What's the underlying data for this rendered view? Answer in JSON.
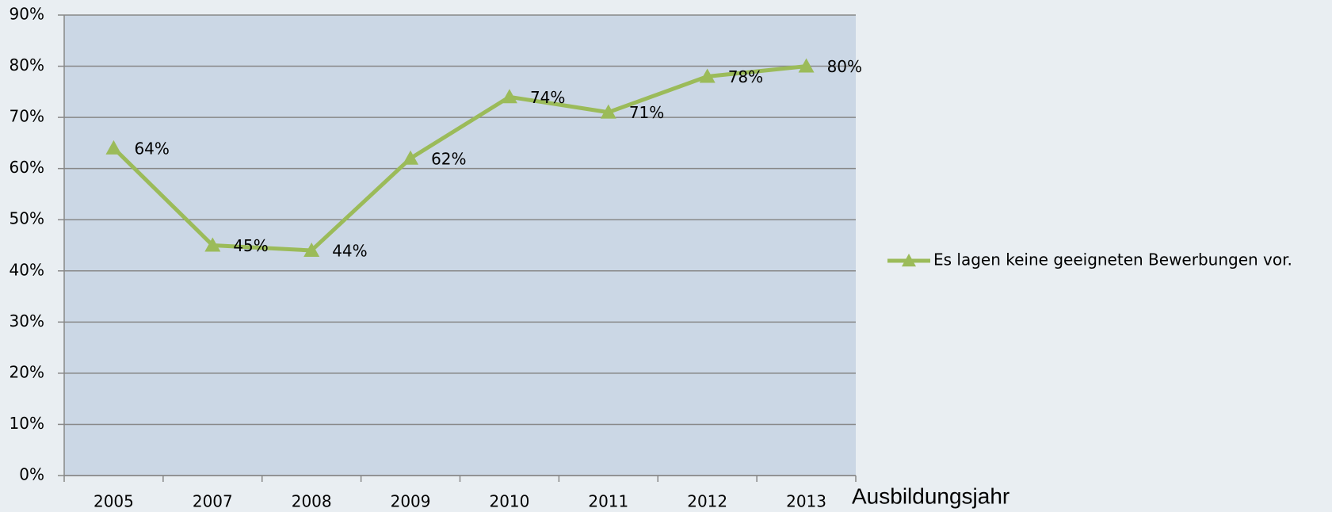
{
  "chart_data": {
    "type": "line",
    "categories": [
      "2005",
      "2007",
      "2008",
      "2009",
      "2010",
      "2011",
      "2012",
      "2013"
    ],
    "series": [
      {
        "name": "Es lagen keine geeigneten Bewerbungen vor.",
        "color": "#9bbb59",
        "values": [
          64,
          45,
          44,
          62,
          74,
          71,
          78,
          80
        ],
        "value_labels": [
          "64%",
          "45%",
          "44%",
          "62%",
          "74%",
          "71%",
          "78%",
          "80%"
        ]
      }
    ],
    "x_label": "Ausbildungsjahr",
    "ylim": [
      0,
      90
    ],
    "yticks": [
      {
        "value": 0,
        "label": "0%"
      },
      {
        "value": 10,
        "label": "10%"
      },
      {
        "value": 20,
        "label": "20%"
      },
      {
        "value": 30,
        "label": "30%"
      },
      {
        "value": 40,
        "label": "40%"
      },
      {
        "value": 50,
        "label": "50%"
      },
      {
        "value": 60,
        "label": "60%"
      },
      {
        "value": 70,
        "label": "70%"
      },
      {
        "value": 80,
        "label": "80%"
      },
      {
        "value": 90,
        "label": "90%"
      }
    ],
    "grid": true,
    "legend": "right",
    "plot_background": "#cbd7e5"
  }
}
